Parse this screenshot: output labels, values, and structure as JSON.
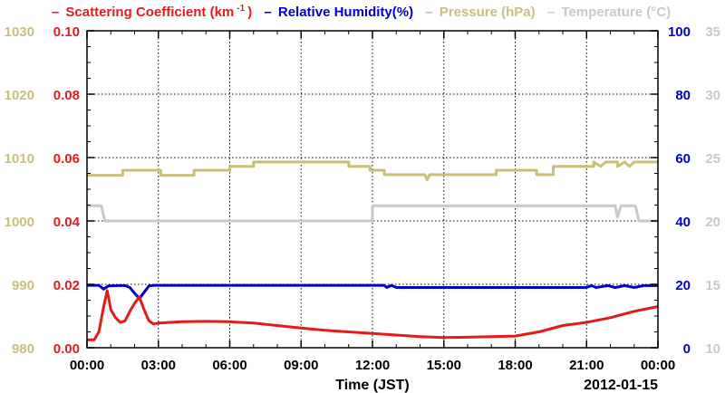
{
  "colors": {
    "scattering": "#e31a1c",
    "humidity": "#0000cc",
    "pressure": "#c8bf7a",
    "temperature": "#c8c8c8",
    "axis": "#000000",
    "grid": "#000000"
  },
  "legend": [
    {
      "key": "scattering",
      "text": "Scattering Coefficient (km",
      "sup": "-1",
      "tail": ")"
    },
    {
      "key": "humidity",
      "text": "Relative Humidity(%)"
    },
    {
      "key": "pressure",
      "text": "Pressure (hPa)"
    },
    {
      "key": "temperature",
      "text": "Temperature (°C)"
    }
  ],
  "chart_data": {
    "type": "line",
    "xlabel": "Time (JST)",
    "date_label": "2012-01-15",
    "x_ticks": [
      "00:00",
      "03:00",
      "06:00",
      "09:00",
      "12:00",
      "15:00",
      "18:00",
      "21:00",
      "00:00"
    ],
    "xlim_hours": [
      0,
      24
    ],
    "grid": true,
    "legend_position": "top",
    "axes": {
      "scattering": {
        "ticks": [
          "0.00",
          "0.02",
          "0.04",
          "0.06",
          "0.08",
          "0.10"
        ],
        "range": [
          0,
          0.1
        ],
        "side": "left-inner"
      },
      "pressure": {
        "ticks": [
          "980",
          "990",
          "1000",
          "1010",
          "1020",
          "1030"
        ],
        "range": [
          980,
          1030
        ],
        "side": "left-outer"
      },
      "humidity": {
        "ticks": [
          "0",
          "20",
          "40",
          "60",
          "80",
          "100"
        ],
        "range": [
          0,
          100
        ],
        "side": "right-inner"
      },
      "temperature": {
        "ticks": [
          "10",
          "15",
          "20",
          "25",
          "30",
          "35"
        ],
        "range": [
          10,
          35
        ],
        "side": "right-outer"
      }
    },
    "series": [
      {
        "key": "pressure",
        "name": "Pressure (hPa)",
        "axis": "pressure",
        "step": true,
        "points": [
          [
            0,
            1007.2
          ],
          [
            1.5,
            1007.2
          ],
          [
            1.5,
            1008
          ],
          [
            3.1,
            1008
          ],
          [
            3.1,
            1007.2
          ],
          [
            4.5,
            1007.2
          ],
          [
            4.5,
            1008
          ],
          [
            6,
            1008
          ],
          [
            6,
            1008.6
          ],
          [
            7,
            1008.6
          ],
          [
            7,
            1009.3
          ],
          [
            11,
            1009.3
          ],
          [
            11,
            1008.6
          ],
          [
            11.9,
            1008.6
          ],
          [
            11.9,
            1008
          ],
          [
            12.5,
            1008
          ],
          [
            12.5,
            1007.3
          ],
          [
            14.2,
            1007.3
          ],
          [
            14.3,
            1006.5
          ],
          [
            14.4,
            1007.3
          ],
          [
            17.2,
            1007.3
          ],
          [
            17.2,
            1008
          ],
          [
            18.9,
            1008
          ],
          [
            18.9,
            1007.3
          ],
          [
            19.6,
            1007.3
          ],
          [
            19.6,
            1008.6
          ],
          [
            21.3,
            1008.6
          ],
          [
            21.3,
            1009.3
          ],
          [
            21.6,
            1008.6
          ],
          [
            21.8,
            1009.3
          ],
          [
            22.3,
            1009.3
          ],
          [
            22.3,
            1008.6
          ],
          [
            22.6,
            1009.3
          ],
          [
            22.8,
            1008.6
          ],
          [
            23,
            1009.3
          ],
          [
            24,
            1009.3
          ]
        ]
      },
      {
        "key": "temperature",
        "name": "Temperature (°C)",
        "axis": "temperature",
        "step": true,
        "points": [
          [
            0,
            21.2
          ],
          [
            0.6,
            21.2
          ],
          [
            0.75,
            20
          ],
          [
            12,
            20
          ],
          [
            12,
            21.2
          ],
          [
            22.2,
            21.2
          ],
          [
            22.3,
            20.3
          ],
          [
            22.45,
            21.2
          ],
          [
            23.05,
            21.2
          ],
          [
            23.2,
            20
          ],
          [
            24,
            20
          ]
        ]
      },
      {
        "key": "humidity",
        "name": "Relative Humidity(%)",
        "axis": "humidity",
        "step": false,
        "points": [
          [
            0,
            19.7
          ],
          [
            0.5,
            19.7
          ],
          [
            0.7,
            18.5
          ],
          [
            0.9,
            19.5
          ],
          [
            1.3,
            19.6
          ],
          [
            1.6,
            19.6
          ],
          [
            1.8,
            19
          ],
          [
            2,
            17.2
          ],
          [
            2.2,
            15.5
          ],
          [
            2.4,
            17.5
          ],
          [
            2.6,
            19.5
          ],
          [
            2.8,
            19.7
          ],
          [
            12.5,
            19.7
          ],
          [
            12.6,
            19
          ],
          [
            12.8,
            19.7
          ],
          [
            13,
            19
          ],
          [
            17,
            19
          ],
          [
            21,
            19
          ],
          [
            21.2,
            19.6
          ],
          [
            21.4,
            19
          ],
          [
            21.9,
            19.6
          ],
          [
            22.2,
            19
          ],
          [
            22.6,
            19.6
          ],
          [
            23,
            19
          ],
          [
            23.4,
            19.6
          ],
          [
            24,
            19.6
          ]
        ]
      },
      {
        "key": "scattering",
        "name": "Scattering Coefficient (km-1)",
        "axis": "scattering",
        "step": false,
        "points": [
          [
            0,
            0.0025
          ],
          [
            0.3,
            0.0025
          ],
          [
            0.5,
            0.005
          ],
          [
            0.7,
            0.013
          ],
          [
            0.85,
            0.018
          ],
          [
            1,
            0.012
          ],
          [
            1.2,
            0.0095
          ],
          [
            1.4,
            0.008
          ],
          [
            1.6,
            0.0085
          ],
          [
            1.8,
            0.0115
          ],
          [
            2,
            0.014
          ],
          [
            2.2,
            0.016
          ],
          [
            2.4,
            0.012
          ],
          [
            2.6,
            0.0085
          ],
          [
            2.8,
            0.0075
          ],
          [
            3,
            0.0078
          ],
          [
            4,
            0.0082
          ],
          [
            5,
            0.0083
          ],
          [
            6,
            0.0082
          ],
          [
            7,
            0.0078
          ],
          [
            8,
            0.007
          ],
          [
            9,
            0.0062
          ],
          [
            10,
            0.0055
          ],
          [
            11,
            0.005
          ],
          [
            12,
            0.0045
          ],
          [
            13,
            0.004
          ],
          [
            14,
            0.0035
          ],
          [
            15,
            0.0032
          ],
          [
            16,
            0.0033
          ],
          [
            17,
            0.0035
          ],
          [
            18,
            0.0037
          ],
          [
            19,
            0.005
          ],
          [
            20,
            0.007
          ],
          [
            21,
            0.008
          ],
          [
            22,
            0.0095
          ],
          [
            23,
            0.0115
          ],
          [
            24,
            0.013
          ]
        ]
      }
    ]
  }
}
